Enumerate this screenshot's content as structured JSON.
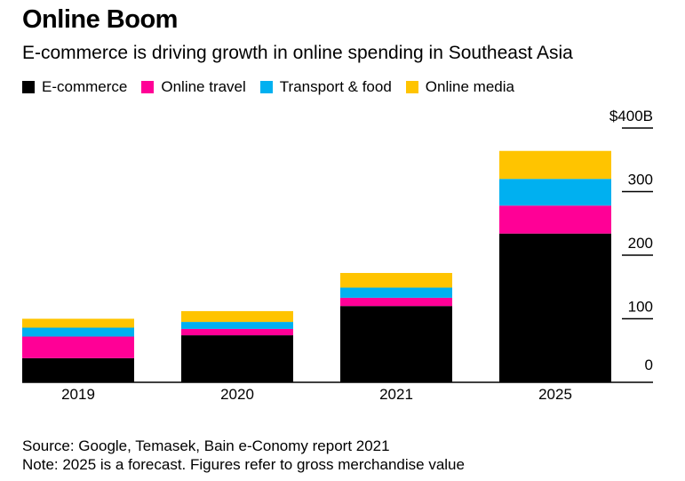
{
  "header": {
    "title": "Online Boom",
    "subtitle": "E-commerce is driving growth in online spending in Southeast Asia"
  },
  "legend": [
    {
      "label": "E-commerce",
      "color": "#000000"
    },
    {
      "label": "Online travel",
      "color": "#ff0096"
    },
    {
      "label": "Transport & food",
      "color": "#00b0f0"
    },
    {
      "label": "Online media",
      "color": "#ffc400"
    }
  ],
  "chart_data": {
    "type": "bar",
    "stacked": true,
    "title": "Online Boom",
    "subtitle": "E-commerce is driving growth in online spending in Southeast Asia",
    "categories": [
      "2019",
      "2020",
      "2021",
      "2025"
    ],
    "series": [
      {
        "name": "E-commerce",
        "color": "#000000",
        "values": [
          38,
          74,
          120,
          234
        ]
      },
      {
        "name": "Online travel",
        "color": "#ff0096",
        "values": [
          34,
          10,
          13,
          44
        ]
      },
      {
        "name": "Transport & food",
        "color": "#00b0f0",
        "values": [
          14,
          11,
          16,
          42
        ]
      },
      {
        "name": "Online media",
        "color": "#ffc400",
        "values": [
          14,
          17,
          23,
          44
        ]
      }
    ],
    "y_ticks": [
      {
        "value": 400,
        "label": "$400B"
      },
      {
        "value": 300,
        "label": "300"
      },
      {
        "value": 200,
        "label": "200"
      },
      {
        "value": 100,
        "label": "100"
      },
      {
        "value": 0,
        "label": "0"
      }
    ],
    "ylim": [
      0,
      400
    ],
    "xlabel": "",
    "ylabel": "",
    "legend_position": "top-left"
  },
  "footer": {
    "source": "Source: Google, Temasek, Bain e-Conomy report 2021",
    "note": "Note: 2025 is a forecast. Figures refer to gross merchandise value"
  }
}
